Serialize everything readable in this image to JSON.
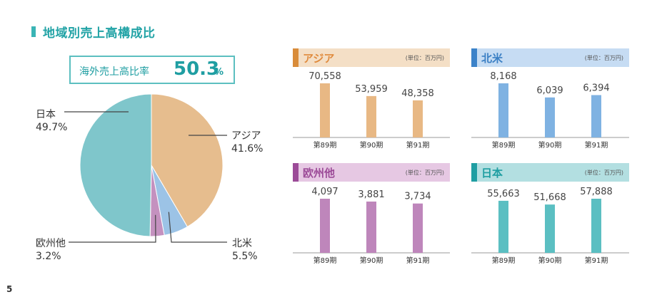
{
  "section_title": "地域別売上高構成比",
  "overseas": {
    "label": "海外売上高比率",
    "value": "50.3",
    "unit": "%"
  },
  "chart_data": [
    {
      "type": "pie",
      "title": "",
      "slices": [
        {
          "label": "日本",
          "pct_label": "49.7%",
          "value": 49.7,
          "color": "#7fc6cb"
        },
        {
          "label": "アジア",
          "pct_label": "41.6%",
          "value": 41.6,
          "color": "#e6bd8e"
        },
        {
          "label": "北米",
          "pct_label": "5.5%",
          "value": 5.5,
          "color": "#9cc3e6"
        },
        {
          "label": "欧州他",
          "pct_label": "3.2%",
          "value": 3.2,
          "color": "#c491bf"
        }
      ]
    },
    {
      "type": "bar",
      "title": "アジア",
      "unit": "(単位：百万円)",
      "categories": [
        "第89期",
        "第90期",
        "第91期"
      ],
      "values": [
        70558,
        53959,
        48358
      ],
      "labels": [
        "70,558",
        "53,959",
        "48,358"
      ],
      "color": "#e8b884",
      "head_bg": "#f4dfc6",
      "stripe": "#d98c3a",
      "title_color": "#e08a3c"
    },
    {
      "type": "bar",
      "title": "北米",
      "unit": "(単位：百万円)",
      "categories": [
        "第89期",
        "第90期",
        "第91期"
      ],
      "values": [
        8168,
        6039,
        6394
      ],
      "labels": [
        "8,168",
        "6,039",
        "6,394"
      ],
      "color": "#7fb2e2",
      "head_bg": "#c6dcf3",
      "stripe": "#3b82c9",
      "title_color": "#3a7fc4"
    },
    {
      "type": "bar",
      "title": "欧州他",
      "unit": "(単位：百万円)",
      "categories": [
        "第89期",
        "第90期",
        "第91期"
      ],
      "values": [
        4097,
        3881,
        3734
      ],
      "labels": [
        "4,097",
        "3,881",
        "3,734"
      ],
      "color": "#be86bb",
      "head_bg": "#e6c8e3",
      "stripe": "#9c4b98",
      "title_color": "#9c4b98"
    },
    {
      "type": "bar",
      "title": "日本",
      "unit": "(単位：百万円)",
      "categories": [
        "第89期",
        "第90期",
        "第91期"
      ],
      "values": [
        55663,
        51668,
        57888
      ],
      "labels": [
        "55,663",
        "51,668",
        "57,888"
      ],
      "color": "#5bbfc2",
      "head_bg": "#b3dfe1",
      "stripe": "#1f9ea2",
      "title_color": "#1f9ea2"
    }
  ],
  "page_number": "5"
}
